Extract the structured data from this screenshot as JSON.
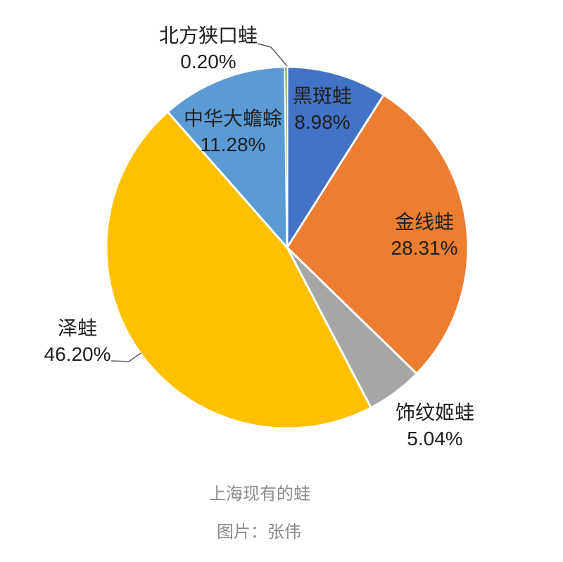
{
  "chart_data": {
    "type": "pie",
    "title": "上海现有的蛙",
    "caption": "图片：张伟",
    "start_angle_deg": 0,
    "direction": "clockwise",
    "legend": "none",
    "label_style": "category name + percent, black text",
    "border_color": "#ffffff",
    "slices": [
      {
        "name": "黑斑蛙",
        "value": 8.98,
        "percent_label": "8.98%",
        "color": "#4472C4",
        "label_placement": "inside"
      },
      {
        "name": "金线蛙",
        "value": 28.31,
        "percent_label": "28.31%",
        "color": "#ED7D31",
        "label_placement": "inside"
      },
      {
        "name": "饰纹姬蛙",
        "value": 5.04,
        "percent_label": "5.04%",
        "color": "#A6A6A6",
        "label_placement": "outside"
      },
      {
        "name": "泽蛙",
        "value": 46.2,
        "percent_label": "46.20%",
        "color": "#FFC000",
        "label_placement": "outside",
        "leader_line": true
      },
      {
        "name": "中华大蟾蜍",
        "value": 11.28,
        "percent_label": "11.28%",
        "color": "#5B9BD5",
        "label_placement": "inside"
      },
      {
        "name": "北方狭口蛙",
        "value": 0.2,
        "percent_label": "0.20%",
        "color": "#70AD47",
        "label_placement": "outside",
        "leader_line": true
      }
    ]
  }
}
